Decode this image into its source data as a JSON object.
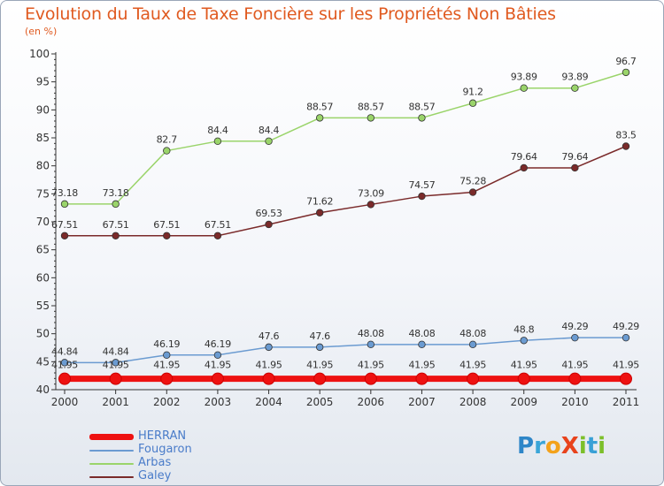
{
  "title": "Evolution du Taux de Taxe Foncière sur les Propriétés Non Bâties",
  "unit_label": "(en %)",
  "logo": {
    "text": "Proxiti",
    "letters": [
      {
        "ch": "P",
        "color": "#2e86c8"
      },
      {
        "ch": "r",
        "color": "#3aa5d8"
      },
      {
        "ch": "o",
        "color": "#f3a21b"
      },
      {
        "ch": "X",
        "color": "#e8431c"
      },
      {
        "ch": "i",
        "color": "#7cbf2a"
      },
      {
        "ch": "t",
        "color": "#39a0d6"
      },
      {
        "ch": "i",
        "color": "#7cbf2a"
      }
    ]
  },
  "chart_data": {
    "type": "line",
    "title": "Evolution du Taux de Taxe Foncière sur les Propriétés Non Bâties",
    "ylabel": "(en %)",
    "xlabel": "",
    "x": [
      "2000",
      "2001",
      "2002",
      "2003",
      "2004",
      "2005",
      "2006",
      "2007",
      "2008",
      "2009",
      "2010",
      "2011"
    ],
    "ylim": [
      40,
      100
    ],
    "yticks": [
      "40",
      "45",
      "50",
      "55",
      "60",
      "65",
      "70",
      "75",
      "80",
      "85",
      "90",
      "95",
      "100"
    ],
    "grid": false,
    "legend_position": "bottom-left",
    "series": [
      {
        "name": "HERRAN",
        "color": "#ee1111",
        "values": [
          41.95,
          41.95,
          41.95,
          41.95,
          41.95,
          41.95,
          41.95,
          41.95,
          41.95,
          41.95,
          41.95,
          41.95
        ],
        "labels": [
          "41.95",
          "41.95",
          "41.95",
          "41.95",
          "41.95",
          "41.95",
          "41.95",
          "41.95",
          "41.95",
          "41.95",
          "41.95",
          "41.95"
        ]
      },
      {
        "name": "Fougaron",
        "color": "#6b9bd1",
        "values": [
          44.84,
          44.84,
          46.19,
          46.19,
          47.6,
          47.6,
          48.08,
          48.08,
          48.08,
          48.8,
          49.29,
          49.29
        ],
        "labels": [
          "44.84",
          "44.84",
          "46.19",
          "46.19",
          "47.6",
          "47.6",
          "48.08",
          "48.08",
          "48.08",
          "48.8",
          "49.29",
          "49.29"
        ]
      },
      {
        "name": "Arbas",
        "color": "#9ad46a",
        "values": [
          73.18,
          73.18,
          82.7,
          84.4,
          84.4,
          88.57,
          88.57,
          88.57,
          91.2,
          93.89,
          93.89,
          96.7
        ],
        "labels": [
          "73.18",
          "73.18",
          "82.7",
          "84.4",
          "84.4",
          "88.57",
          "88.57",
          "88.57",
          "91.2",
          "93.89",
          "93.89",
          "96.7"
        ]
      },
      {
        "name": "Galey",
        "color": "#7a2a2a",
        "values": [
          67.51,
          67.51,
          67.51,
          67.51,
          69.53,
          71.62,
          73.09,
          74.57,
          75.28,
          79.64,
          79.64,
          83.5
        ],
        "labels": [
          "67.51",
          "67.51",
          "67.51",
          "67.51",
          "69.53",
          "71.62",
          "73.09",
          "74.57",
          "75.28",
          "79.64",
          "79.64",
          "83.5"
        ]
      }
    ]
  }
}
